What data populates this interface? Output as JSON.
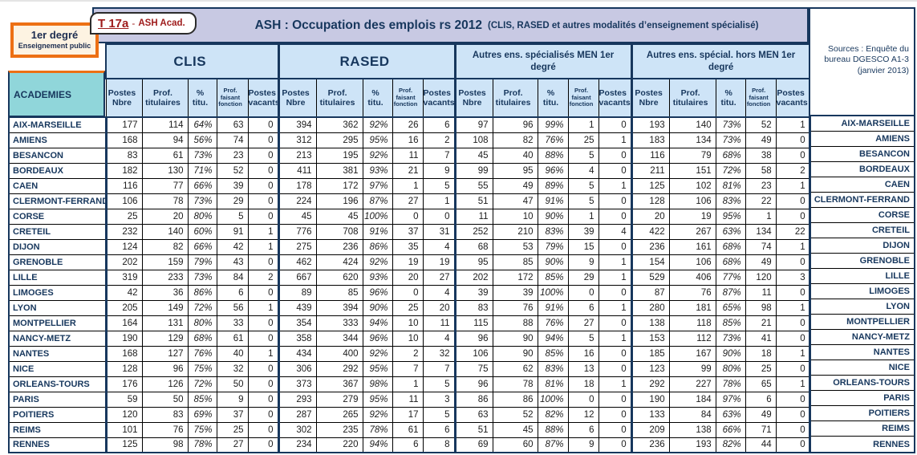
{
  "badge": {
    "code": "T 17a",
    "sep": "-",
    "suffix": "ASH Acad."
  },
  "corner_box": {
    "line1": "1er degré",
    "line2": "Enseignement public"
  },
  "title": {
    "main": "ASH : Occupation des emplois rs 2012",
    "sub": "(CLIS, RASED et autres modalités d’enseignement spécialisé)"
  },
  "sources_box": {
    "text": "Sources : Enquête du bureau DGESCO A1-3 (janvier 2013)"
  },
  "colors": {
    "navy": "#17375d",
    "light_blue": "#cee4f7",
    "lavender": "#c8c9e3",
    "teal": "#90d6da",
    "orange": "#ed7014",
    "cream": "#fdf3e2",
    "dark_red": "#9e1b1b"
  },
  "table": {
    "row_header": "ACADEMIES",
    "groups": [
      "CLIS",
      "RASED",
      "Autres ens. spécialisés MEN 1er degré",
      "Autres ens. spécial. hors MEN 1er degré"
    ],
    "sub_headers": [
      "Postes\nNbre",
      "Prof.\ntitulaires",
      "%\ntitu.",
      "Prof.\nfaisant\nfonction",
      "Postes\nvacants"
    ],
    "rows": [
      {
        "academy": "AIX-MARSEILLE",
        "clis": [
          177,
          114,
          "64%",
          63,
          0
        ],
        "rased": [
          394,
          362,
          "92%",
          26,
          6
        ],
        "men": [
          97,
          96,
          "99%",
          1,
          0
        ],
        "hors_men": [
          193,
          140,
          "73%",
          52,
          1
        ]
      },
      {
        "academy": "AMIENS",
        "clis": [
          168,
          94,
          "56%",
          74,
          0
        ],
        "rased": [
          312,
          295,
          "95%",
          16,
          2
        ],
        "men": [
          108,
          82,
          "76%",
          25,
          1
        ],
        "hors_men": [
          183,
          134,
          "73%",
          49,
          0
        ]
      },
      {
        "academy": "BESANCON",
        "clis": [
          83,
          61,
          "73%",
          23,
          0
        ],
        "rased": [
          213,
          195,
          "92%",
          11,
          7
        ],
        "men": [
          45,
          40,
          "88%",
          5,
          0
        ],
        "hors_men": [
          116,
          79,
          "68%",
          38,
          0
        ]
      },
      {
        "academy": "BORDEAUX",
        "clis": [
          182,
          130,
          "71%",
          52,
          0
        ],
        "rased": [
          411,
          381,
          "93%",
          21,
          9
        ],
        "men": [
          99,
          95,
          "96%",
          4,
          0
        ],
        "hors_men": [
          211,
          151,
          "72%",
          58,
          2
        ]
      },
      {
        "academy": "CAEN",
        "clis": [
          116,
          77,
          "66%",
          39,
          0
        ],
        "rased": [
          178,
          172,
          "97%",
          1,
          5
        ],
        "men": [
          55,
          49,
          "89%",
          5,
          1
        ],
        "hors_men": [
          125,
          102,
          "81%",
          23,
          1
        ]
      },
      {
        "academy": "CLERMONT-FERRAND",
        "clis": [
          106,
          78,
          "73%",
          29,
          0
        ],
        "rased": [
          224,
          196,
          "87%",
          27,
          1
        ],
        "men": [
          51,
          47,
          "91%",
          5,
          0
        ],
        "hors_men": [
          128,
          106,
          "83%",
          22,
          0
        ]
      },
      {
        "academy": "CORSE",
        "clis": [
          25,
          20,
          "80%",
          5,
          0
        ],
        "rased": [
          45,
          45,
          "100%",
          0,
          0
        ],
        "men": [
          11,
          10,
          "90%",
          1,
          0
        ],
        "hors_men": [
          20,
          19,
          "95%",
          1,
          0
        ]
      },
      {
        "academy": "CRETEIL",
        "clis": [
          232,
          140,
          "60%",
          91,
          1
        ],
        "rased": [
          776,
          708,
          "91%",
          37,
          31
        ],
        "men": [
          252,
          210,
          "83%",
          39,
          4
        ],
        "hors_men": [
          422,
          267,
          "63%",
          134,
          22
        ]
      },
      {
        "academy": "DIJON",
        "clis": [
          124,
          82,
          "66%",
          42,
          1
        ],
        "rased": [
          275,
          236,
          "86%",
          35,
          4
        ],
        "men": [
          68,
          53,
          "79%",
          15,
          0
        ],
        "hors_men": [
          236,
          161,
          "68%",
          74,
          1
        ]
      },
      {
        "academy": "GRENOBLE",
        "clis": [
          202,
          159,
          "79%",
          43,
          0
        ],
        "rased": [
          462,
          424,
          "92%",
          19,
          19
        ],
        "men": [
          95,
          85,
          "90%",
          9,
          1
        ],
        "hors_men": [
          154,
          106,
          "68%",
          49,
          0
        ]
      },
      {
        "academy": "LILLE",
        "clis": [
          319,
          233,
          "73%",
          84,
          2
        ],
        "rased": [
          667,
          620,
          "93%",
          20,
          27
        ],
        "men": [
          202,
          172,
          "85%",
          29,
          1
        ],
        "hors_men": [
          529,
          406,
          "77%",
          120,
          3
        ]
      },
      {
        "academy": "LIMOGES",
        "clis": [
          42,
          36,
          "86%",
          6,
          0
        ],
        "rased": [
          89,
          85,
          "96%",
          0,
          4
        ],
        "men": [
          39,
          39,
          "100%",
          0,
          0
        ],
        "hors_men": [
          87,
          76,
          "87%",
          11,
          0
        ]
      },
      {
        "academy": "LYON",
        "clis": [
          205,
          149,
          "72%",
          56,
          1
        ],
        "rased": [
          439,
          394,
          "90%",
          25,
          20
        ],
        "men": [
          83,
          76,
          "91%",
          6,
          1
        ],
        "hors_men": [
          280,
          181,
          "65%",
          98,
          1
        ]
      },
      {
        "academy": "MONTPELLIER",
        "clis": [
          164,
          131,
          "80%",
          33,
          0
        ],
        "rased": [
          354,
          333,
          "94%",
          10,
          11
        ],
        "men": [
          115,
          88,
          "76%",
          27,
          0
        ],
        "hors_men": [
          138,
          118,
          "85%",
          21,
          0
        ]
      },
      {
        "academy": "NANCY-METZ",
        "clis": [
          190,
          129,
          "68%",
          61,
          0
        ],
        "rased": [
          358,
          344,
          "96%",
          10,
          4
        ],
        "men": [
          96,
          90,
          "94%",
          5,
          1
        ],
        "hors_men": [
          153,
          112,
          "73%",
          41,
          0
        ]
      },
      {
        "academy": "NANTES",
        "clis": [
          168,
          127,
          "76%",
          40,
          1
        ],
        "rased": [
          434,
          400,
          "92%",
          2,
          32
        ],
        "men": [
          106,
          90,
          "85%",
          16,
          0
        ],
        "hors_men": [
          185,
          167,
          "90%",
          18,
          1
        ]
      },
      {
        "academy": "NICE",
        "clis": [
          128,
          96,
          "75%",
          32,
          0
        ],
        "rased": [
          306,
          292,
          "95%",
          7,
          7
        ],
        "men": [
          75,
          62,
          "83%",
          13,
          0
        ],
        "hors_men": [
          123,
          99,
          "80%",
          25,
          0
        ]
      },
      {
        "academy": "ORLEANS-TOURS",
        "clis": [
          176,
          126,
          "72%",
          50,
          0
        ],
        "rased": [
          373,
          367,
          "98%",
          1,
          5
        ],
        "men": [
          96,
          78,
          "81%",
          18,
          1
        ],
        "hors_men": [
          292,
          227,
          "78%",
          65,
          1
        ]
      },
      {
        "academy": "PARIS",
        "clis": [
          59,
          50,
          "85%",
          9,
          0
        ],
        "rased": [
          293,
          279,
          "95%",
          11,
          3
        ],
        "men": [
          86,
          86,
          "100%",
          0,
          0
        ],
        "hors_men": [
          190,
          184,
          "97%",
          6,
          0
        ]
      },
      {
        "academy": "POITIERS",
        "clis": [
          120,
          83,
          "69%",
          37,
          0
        ],
        "rased": [
          287,
          265,
          "92%",
          17,
          5
        ],
        "men": [
          63,
          52,
          "82%",
          12,
          0
        ],
        "hors_men": [
          133,
          84,
          "63%",
          49,
          0
        ]
      },
      {
        "academy": "REIMS",
        "clis": [
          101,
          76,
          "75%",
          25,
          0
        ],
        "rased": [
          302,
          235,
          "78%",
          61,
          6
        ],
        "men": [
          51,
          45,
          "88%",
          6,
          0
        ],
        "hors_men": [
          209,
          138,
          "66%",
          71,
          0
        ]
      },
      {
        "academy": "RENNES",
        "clis": [
          125,
          98,
          "78%",
          27,
          0
        ],
        "rased": [
          234,
          220,
          "94%",
          6,
          8
        ],
        "men": [
          69,
          60,
          "87%",
          9,
          0
        ],
        "hors_men": [
          236,
          193,
          "82%",
          44,
          0
        ]
      }
    ]
  }
}
